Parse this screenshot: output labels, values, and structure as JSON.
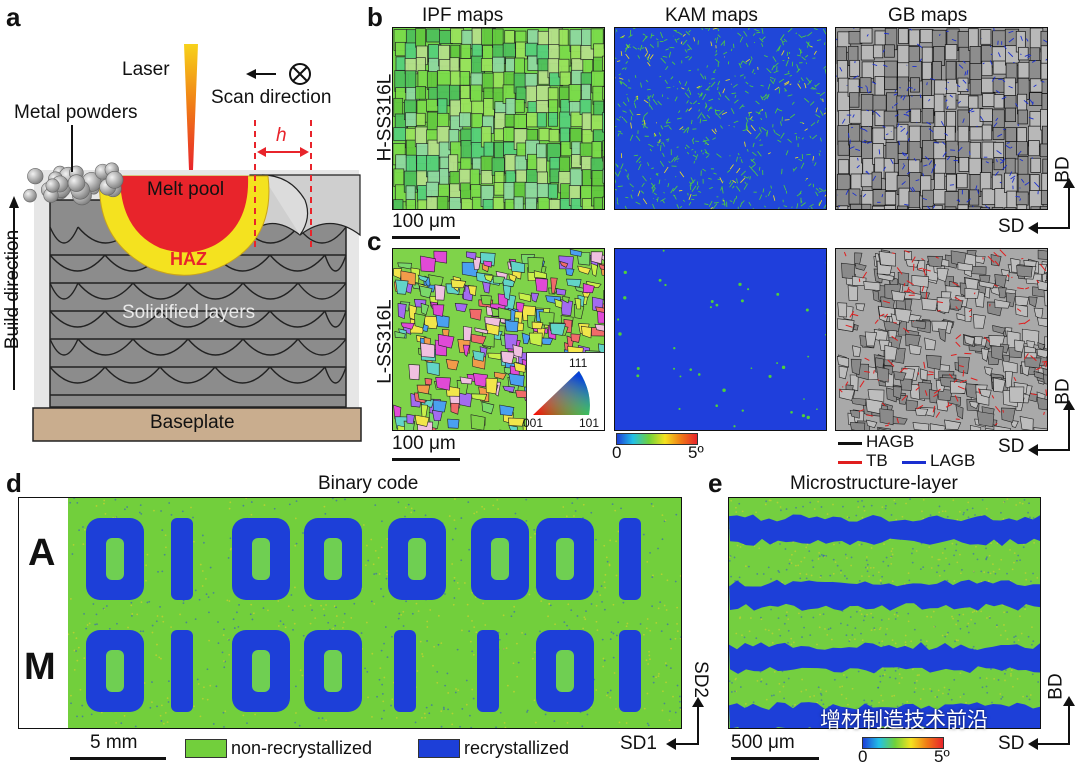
{
  "panel_labels": {
    "a": "a",
    "b": "b",
    "c": "c",
    "d": "d",
    "e": "e"
  },
  "panel_a": {
    "laser": "Laser",
    "scan_direction": "Scan direction",
    "metal_powders": "Metal powders",
    "h": "h",
    "melt_pool": "Melt pool",
    "haz": "HAZ",
    "solidified_layers": "Solidified layers",
    "build_direction": "Build direction",
    "baseplate": "Baseplate"
  },
  "panel_bc": {
    "col_headers": [
      "IPF maps",
      "KAM maps",
      "GB maps"
    ],
    "row_b_label": "H-SS316L",
    "row_c_label": "L-SS316L",
    "scalebar": "100 μm",
    "ipf_triangle": {
      "top": "111",
      "left": "001",
      "right": "101"
    },
    "kam_scale": {
      "min": "0",
      "max": "5º"
    },
    "gb_legend": {
      "hagb": "HAGB",
      "tb": "TB",
      "lagb": "LAGB"
    },
    "axes": {
      "bd": "BD",
      "sd": "SD"
    }
  },
  "panel_d": {
    "title": "Binary code",
    "row_a_label": "A",
    "row_m_label": "M",
    "row_a_digits": [
      "0",
      "1",
      "0",
      "0",
      "0",
      "0",
      "0",
      "1"
    ],
    "row_m_digits": [
      "0",
      "1",
      "0",
      "0",
      "1",
      "1",
      "0",
      "1"
    ],
    "scalebar": "5 mm",
    "legend_non": "non-recrystallized",
    "legend_rec": "recrystallized",
    "axes": {
      "sd1": "SD1",
      "sd2": "SD2"
    }
  },
  "panel_e": {
    "title": "Microstructure-layer",
    "scalebar": "500 μm",
    "color_min": "0",
    "color_max": "5º",
    "axes": {
      "bd": "BD",
      "sd": "SD"
    }
  },
  "watermark": "增材制造技术前沿",
  "colors": {
    "green": "#6fd13a",
    "blue": "#1d3fd8",
    "melt_red": "#e8242b",
    "haz_yellow": "#f4e21f",
    "layer_gray": "#8c8c8c",
    "baseplate": "#c9ad8e",
    "hagb": "#111111",
    "tb": "#e01e1e",
    "lagb": "#1a2fd0"
  }
}
